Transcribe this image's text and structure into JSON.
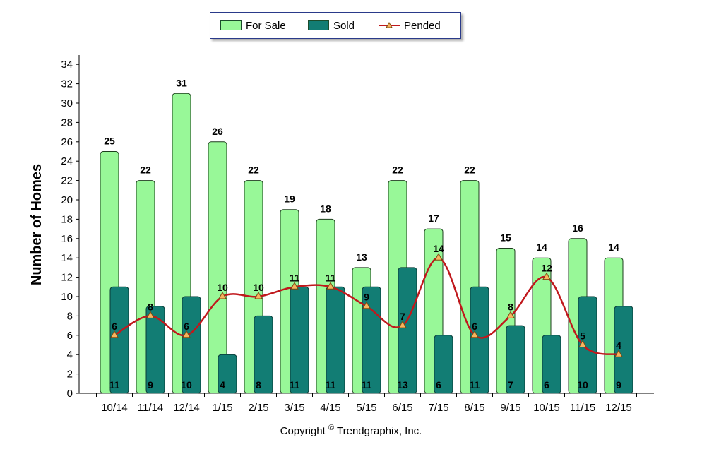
{
  "chart_data": {
    "type": "bar",
    "categories": [
      "10/14",
      "11/14",
      "12/14",
      "1/15",
      "2/15",
      "3/15",
      "4/15",
      "5/15",
      "6/15",
      "7/15",
      "8/15",
      "9/15",
      "10/15",
      "11/15",
      "12/15"
    ],
    "series": [
      {
        "name": "For Sale",
        "type": "bar",
        "values": [
          25,
          22,
          31,
          26,
          22,
          19,
          18,
          13,
          22,
          17,
          22,
          15,
          14,
          16,
          14
        ]
      },
      {
        "name": "Sold",
        "type": "bar",
        "values": [
          11,
          9,
          10,
          4,
          8,
          11,
          11,
          11,
          13,
          6,
          11,
          7,
          6,
          10,
          9
        ]
      },
      {
        "name": "Pended",
        "type": "line",
        "values": [
          6,
          8,
          6,
          10,
          10,
          11,
          11,
          9,
          7,
          14,
          6,
          8,
          12,
          5,
          4
        ]
      }
    ],
    "ylabel": "Number of Homes",
    "xlabel": "",
    "ylim": [
      0,
      35
    ],
    "yticks": [
      0,
      2,
      4,
      6,
      8,
      10,
      12,
      14,
      16,
      18,
      20,
      22,
      24,
      26,
      28,
      30,
      32,
      34
    ],
    "grid": false,
    "legend": "top-center",
    "colors": {
      "for_sale": "#98f898",
      "sold": "#127d74",
      "pended": "#c0181c",
      "marker": "#f7b45f"
    }
  },
  "footer": {
    "copyright": "Copyright",
    "symbol": "©",
    "owner": "Trendgraphix, Inc."
  }
}
